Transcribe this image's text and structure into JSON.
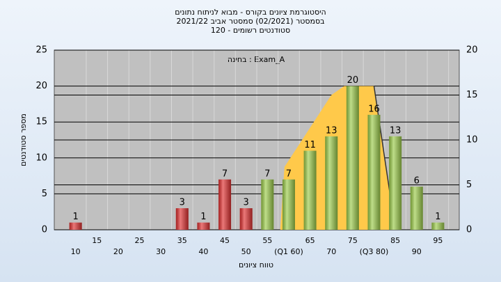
{
  "chart_data": {
    "type": "bar",
    "title_lines": [
      "היסטוגרמת ציונים בקורס - מבוא לניתוח נתונים",
      "בסמסטר  (02/2021)  סמסטר אביב 2021/22",
      "סטודנטים רשומים - 120"
    ],
    "annotation": "בחינה : Exam_A",
    "xlabel": "טווח ציונים",
    "ylabel": "מספר סטודנטים",
    "categories": [
      "10",
      "15",
      "20",
      "25",
      "30",
      "35",
      "40",
      "45",
      "50",
      "55",
      "(Q1 60)",
      "65",
      "70",
      "75",
      "(Q3 80)",
      "85",
      "90",
      "95"
    ],
    "series": [
      {
        "values": [
          1,
          0,
          0,
          0,
          0,
          3,
          1,
          7,
          3,
          7,
          7,
          11,
          13,
          20,
          16,
          13,
          6,
          1
        ],
        "colors": [
          "#e03030",
          "#e03030",
          "#e03030",
          "#e03030",
          "#e03030",
          "#e03030",
          "#e03030",
          "#e03030",
          "#e03030",
          "#9ccc4a",
          "#9ccc4a",
          "#9ccc4a",
          "#9ccc4a",
          "#9ccc4a",
          "#9ccc4a",
          "#9ccc4a",
          "#9ccc4a",
          "#9ccc4a"
        ]
      }
    ],
    "area": {
      "x": [
        58,
        59,
        70,
        73,
        80,
        85
      ],
      "values": [
        0,
        7,
        15,
        16,
        16,
        0
      ],
      "color": "#ffc94a",
      "axis": "y2"
    },
    "ylim": [
      0,
      25
    ],
    "yticks": [
      0,
      5,
      10,
      15,
      20,
      25
    ],
    "y2lim": [
      0,
      20
    ],
    "y2ticks": [
      0,
      5,
      10,
      15,
      20
    ],
    "grid": true
  }
}
